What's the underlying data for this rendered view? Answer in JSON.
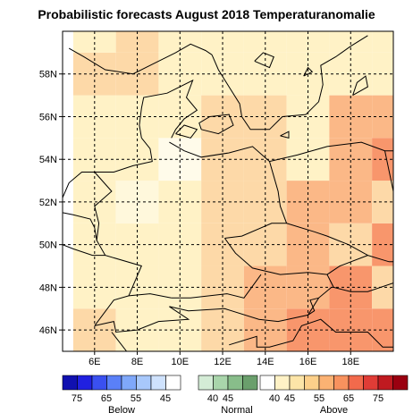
{
  "title": "Probabilistic forecasts August 2018 Temperaturanomalie",
  "map": {
    "lon_range": [
      4.5,
      20.0
    ],
    "lat_range": [
      45.0,
      60.0
    ],
    "lon_ticks": [
      6,
      8,
      10,
      12,
      14,
      16,
      18
    ],
    "lat_ticks": [
      46,
      48,
      50,
      52,
      54,
      56,
      58
    ],
    "lon_tick_labels": [
      "6E",
      "8E",
      "10E",
      "12E",
      "14E",
      "16E",
      "18E"
    ],
    "lat_tick_labels": [
      "46N",
      "48N",
      "50N",
      "52N",
      "54N",
      "56N",
      "58N"
    ],
    "grid_lines": "dashed",
    "cell_size_deg": 2,
    "cell_origin": {
      "lon": 3,
      "lat": 45
    },
    "grid_values": [
      [
        "above-50",
        "above-45",
        "above-45",
        "above-50",
        "above-55",
        "above-60",
        "above-60",
        "above-60"
      ],
      [
        "above-45",
        "above-45",
        "above-45",
        "above-50",
        "above-55",
        "above-55",
        "above-60",
        "above-50"
      ],
      [
        "above-45",
        "above-45",
        "above-45",
        "above-50",
        "above-50",
        "above-55",
        "above-50",
        "above-60"
      ],
      [
        "above-45",
        "above-40",
        "above-45",
        "above-50",
        "above-50",
        "above-55",
        "above-55",
        "above-50"
      ],
      [
        "above-45",
        "above-45",
        "normal-40",
        "above-50",
        "above-50",
        "above-45",
        "above-55",
        "above-60"
      ],
      [
        "above-45",
        "above-45",
        "above-45",
        "above-50",
        "above-50",
        "above-45",
        "above-55",
        "above-55"
      ],
      [
        "above-50",
        "above-50",
        "above-45",
        "above-45",
        "above-45",
        "above-45",
        "above-45",
        "above-45"
      ],
      [
        "above-45",
        "above-50",
        "above-45",
        "above-45",
        "above-45",
        "above-45",
        "above-45",
        "above-45"
      ]
    ]
  },
  "legend": {
    "below": {
      "title": "Below",
      "colors": [
        "#1010b0",
        "#2020e0",
        "#3a50f0",
        "#5a80f8",
        "#7fa8fa",
        "#a8c8fb",
        "#cfe2fd",
        "#ffffff"
      ],
      "labels": [
        "75",
        "65",
        "55",
        "45"
      ]
    },
    "normal": {
      "title": "Normal",
      "colors": [
        "#d4ecd6",
        "#a9d5ab",
        "#88bd8a",
        "#6a9f6c"
      ],
      "labels": [
        "40",
        "45"
      ]
    },
    "above": {
      "title": "Above",
      "colors": [
        "#ffffff",
        "#fff2c6",
        "#fde5a8",
        "#fdd08a",
        "#fbb273",
        "#f8925e",
        "#f26a4c",
        "#e03c36",
        "#c01a20",
        "#9a0010"
      ],
      "labels": [
        "40",
        "45",
        "55",
        "65",
        "75"
      ]
    }
  },
  "category_colors": {
    "normal-40": "#fffbea",
    "above-40": "#fff8dc",
    "above-45": "#fff2c6",
    "above-50": "#fdd9a8",
    "above-55": "#fbb887",
    "above-60": "#f8966c"
  },
  "land_color": "#000000",
  "water_color": "#ffffff"
}
